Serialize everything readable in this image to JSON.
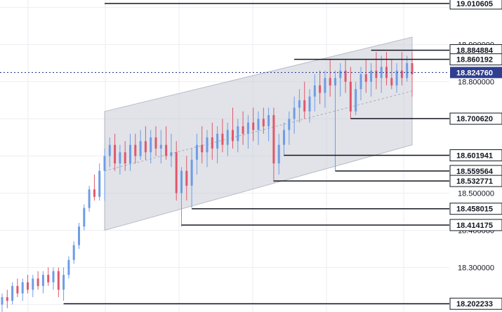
{
  "chart_data": {
    "type": "candlestick",
    "title": "",
    "xlabel": "",
    "ylabel": "",
    "ylim": [
      18.18,
      19.02
    ],
    "grid": true,
    "colors": {
      "up": "#6e9ce6",
      "down": "#e0576b",
      "channel": "#c9ccd6",
      "line": "#131722",
      "current_label": "#2f3e8f"
    },
    "y_ticks": [
      {
        "value": 18.9,
        "label": "18.900000"
      },
      {
        "value": 18.8,
        "label": "18.800000"
      },
      {
        "value": 18.5,
        "label": "18.500000"
      },
      {
        "value": 18.4,
        "label": "18.400000"
      },
      {
        "value": 18.3,
        "label": "18.300000"
      }
    ],
    "levels": [
      {
        "name": "level-19010605",
        "value": 19.010605,
        "label": "19.010605",
        "from_bar": 20
      },
      {
        "name": "level-18884884",
        "value": 18.884884,
        "label": "18.884884",
        "from_bar": 72
      },
      {
        "name": "level-18860192",
        "value": 18.860192,
        "label": "18.860192",
        "from_bar": 57
      },
      {
        "name": "level-18700620",
        "value": 18.70062,
        "label": "18.700620",
        "from_bar": 68
      },
      {
        "name": "level-18601941",
        "value": 18.601941,
        "label": "18.601941",
        "from_bar": 55
      },
      {
        "name": "level-18559564",
        "value": 18.559564,
        "label": "18.559564",
        "from_bar": 65
      },
      {
        "name": "level-18532771",
        "value": 18.532771,
        "label": "18.532771",
        "from_bar": 53
      },
      {
        "name": "level-18458015",
        "value": 18.458015,
        "label": "18.458015",
        "from_bar": 37
      },
      {
        "name": "level-18414175",
        "value": 18.414175,
        "label": "18.414175",
        "from_bar": 35
      },
      {
        "name": "level-18202233",
        "value": 18.202233,
        "label": "18.202233",
        "from_bar": 12
      }
    ],
    "current": {
      "value": 18.82476,
      "label": "18.824760"
    },
    "channel": {
      "start_bar": 20,
      "end_bar": 80,
      "upper_start": 18.72,
      "upper_end": 18.92,
      "lower_start": 18.4,
      "lower_end": 18.63
    },
    "candles": [
      [
        18.2,
        18.23,
        18.18,
        18.22
      ],
      [
        18.22,
        18.24,
        18.19,
        18.21
      ],
      [
        18.21,
        18.26,
        18.2,
        18.25
      ],
      [
        18.25,
        18.27,
        18.22,
        18.23
      ],
      [
        18.23,
        18.27,
        18.21,
        18.26
      ],
      [
        18.26,
        18.28,
        18.23,
        18.24
      ],
      [
        18.24,
        18.28,
        18.22,
        18.27
      ],
      [
        18.27,
        18.29,
        18.24,
        18.25
      ],
      [
        18.25,
        18.29,
        18.23,
        18.28
      ],
      [
        18.28,
        18.3,
        18.25,
        18.26
      ],
      [
        18.26,
        18.3,
        18.24,
        18.29
      ],
      [
        18.29,
        18.3,
        18.22,
        18.24
      ],
      [
        18.24,
        18.3,
        18.21,
        18.28
      ],
      [
        18.28,
        18.33,
        18.27,
        18.32
      ],
      [
        18.32,
        18.37,
        18.31,
        18.36
      ],
      [
        18.36,
        18.42,
        18.35,
        18.41
      ],
      [
        18.41,
        18.47,
        18.4,
        18.46
      ],
      [
        18.46,
        18.52,
        18.45,
        18.51
      ],
      [
        18.51,
        18.55,
        18.48,
        18.49
      ],
      [
        18.49,
        18.58,
        18.48,
        18.56
      ],
      [
        18.56,
        18.62,
        18.48,
        18.6
      ],
      [
        18.6,
        18.65,
        18.57,
        18.63
      ],
      [
        18.63,
        18.66,
        18.56,
        18.58
      ],
      [
        18.58,
        18.63,
        18.55,
        18.61
      ],
      [
        18.61,
        18.64,
        18.56,
        18.58
      ],
      [
        18.58,
        18.66,
        18.56,
        18.63
      ],
      [
        18.63,
        18.66,
        18.58,
        18.6
      ],
      [
        18.6,
        18.67,
        18.59,
        18.64
      ],
      [
        18.64,
        18.68,
        18.59,
        18.61
      ],
      [
        18.61,
        18.67,
        18.58,
        18.65
      ],
      [
        18.65,
        18.68,
        18.6,
        18.62
      ],
      [
        18.62,
        18.67,
        18.58,
        18.63
      ],
      [
        18.63,
        18.68,
        18.59,
        18.6
      ],
      [
        18.6,
        18.66,
        18.57,
        18.61
      ],
      [
        18.61,
        18.64,
        18.48,
        18.5
      ],
      [
        18.5,
        18.57,
        18.41,
        18.56
      ],
      [
        18.56,
        18.6,
        18.48,
        18.52
      ],
      [
        18.52,
        18.62,
        18.46,
        18.59
      ],
      [
        18.59,
        18.66,
        18.55,
        18.63
      ],
      [
        18.63,
        18.68,
        18.58,
        18.61
      ],
      [
        18.61,
        18.67,
        18.57,
        18.65
      ],
      [
        18.65,
        18.69,
        18.59,
        18.62
      ],
      [
        18.62,
        18.68,
        18.58,
        18.66
      ],
      [
        18.66,
        18.7,
        18.61,
        18.63
      ],
      [
        18.63,
        18.69,
        18.6,
        18.67
      ],
      [
        18.67,
        18.73,
        18.62,
        18.64
      ],
      [
        18.64,
        18.7,
        18.61,
        18.68
      ],
      [
        18.68,
        18.72,
        18.63,
        18.66
      ],
      [
        18.66,
        18.71,
        18.62,
        18.69
      ],
      [
        18.69,
        18.73,
        18.64,
        18.67
      ],
      [
        18.67,
        18.72,
        18.63,
        18.7
      ],
      [
        18.7,
        18.73,
        18.66,
        18.68
      ],
      [
        18.68,
        18.73,
        18.64,
        18.71
      ],
      [
        18.71,
        18.73,
        18.53,
        18.58
      ],
      [
        18.58,
        18.66,
        18.55,
        18.63
      ],
      [
        18.63,
        18.69,
        18.6,
        18.67
      ],
      [
        18.67,
        18.72,
        18.63,
        18.7
      ],
      [
        18.7,
        18.76,
        18.66,
        18.73
      ],
      [
        18.73,
        18.78,
        18.69,
        18.75
      ],
      [
        18.75,
        18.8,
        18.7,
        18.72
      ],
      [
        18.72,
        18.78,
        18.69,
        18.76
      ],
      [
        18.76,
        18.82,
        18.72,
        18.79
      ],
      [
        18.79,
        18.83,
        18.74,
        18.77
      ],
      [
        18.77,
        18.83,
        18.73,
        18.81
      ],
      [
        18.81,
        18.86,
        18.76,
        18.79
      ],
      [
        18.79,
        18.83,
        18.56,
        18.81
      ],
      [
        18.81,
        18.85,
        18.76,
        18.83
      ],
      [
        18.83,
        18.86,
        18.77,
        18.8
      ],
      [
        18.8,
        18.84,
        18.7,
        18.72
      ],
      [
        18.72,
        18.8,
        18.71,
        18.78
      ],
      [
        18.78,
        18.84,
        18.75,
        18.82
      ],
      [
        18.82,
        18.86,
        18.77,
        18.8
      ],
      [
        18.8,
        18.85,
        18.76,
        18.83
      ],
      [
        18.83,
        18.88,
        18.78,
        18.81
      ],
      [
        18.81,
        18.87,
        18.77,
        18.84
      ],
      [
        18.84,
        18.88,
        18.79,
        18.81
      ],
      [
        18.81,
        18.86,
        18.78,
        18.79
      ],
      [
        18.79,
        18.85,
        18.77,
        18.83
      ],
      [
        18.83,
        18.88,
        18.79,
        18.81
      ],
      [
        18.81,
        18.87,
        18.8,
        18.85
      ],
      [
        18.85,
        18.88,
        18.76,
        18.82
      ]
    ]
  }
}
